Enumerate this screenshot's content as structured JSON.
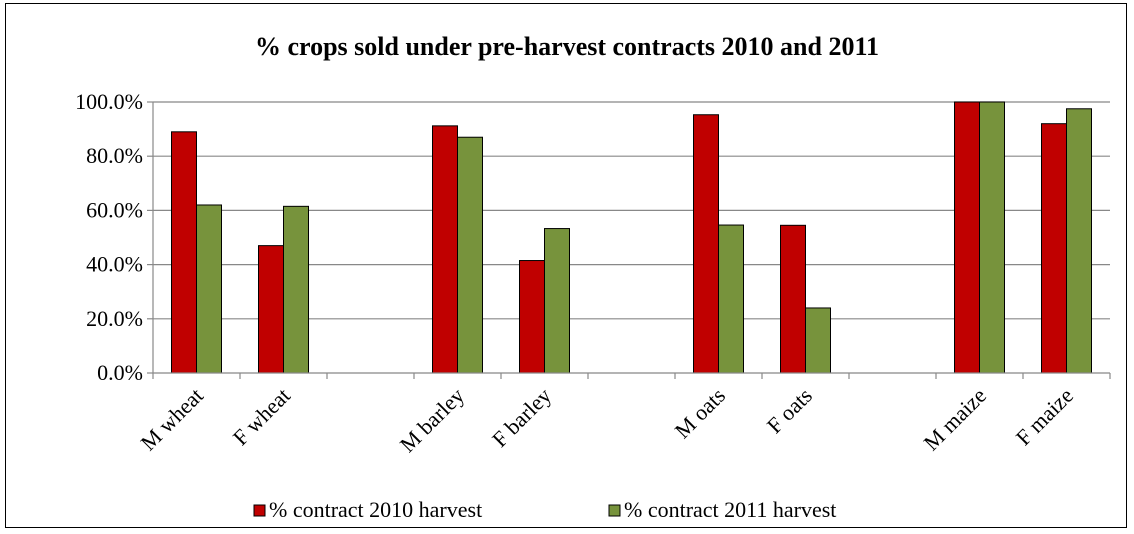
{
  "chart_data": {
    "type": "bar",
    "title": "% crops sold under pre-harvest contracts 2010 and 2011",
    "xlabel": "",
    "ylabel": "",
    "ylim": [
      0,
      100
    ],
    "yticks": [
      "0.0%",
      "20.0%",
      "40.0%",
      "60.0%",
      "80.0%",
      "100.0%"
    ],
    "grid": true,
    "legend_position": "bottom",
    "categories": [
      "M wheat",
      "F wheat",
      "",
      "M barley",
      "F barley",
      "",
      "M oats",
      "F oats",
      "",
      "M maize",
      "F maize"
    ],
    "series": [
      {
        "name": "% contract 2010 harvest",
        "color": "#c00000",
        "values": [
          89,
          47,
          null,
          91.2,
          41.5,
          null,
          95.3,
          54.5,
          null,
          100,
          92
        ]
      },
      {
        "name": "% contract 2011 harvest",
        "color": "#77933c",
        "values": [
          62,
          61.5,
          null,
          87,
          53.3,
          null,
          54.6,
          24,
          null,
          100,
          97.5
        ]
      }
    ]
  }
}
